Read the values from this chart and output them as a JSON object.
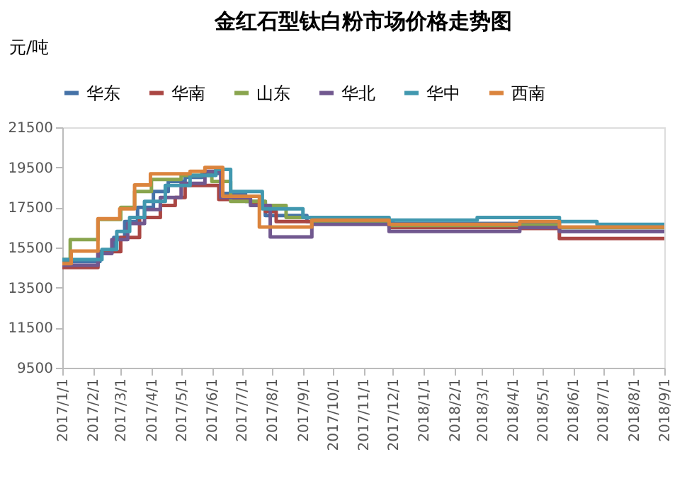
{
  "chart_data": {
    "type": "step",
    "title": "金红石型钛白粉市场价格走势图",
    "ylabel": "元/吨",
    "legend": "top",
    "grid": false,
    "xlim": [
      "2017-01-01",
      "2018-09-01"
    ],
    "ylim": [
      9500,
      21500
    ],
    "yticks": [
      9500,
      11500,
      13500,
      15500,
      17500,
      19500,
      21500
    ],
    "xticks": [
      {
        "value": "2017-01-01",
        "label": "2017/1/1"
      },
      {
        "value": "2017-02-01",
        "label": "2017/2/1"
      },
      {
        "value": "2017-03-01",
        "label": "2017/3/1"
      },
      {
        "value": "2017-04-01",
        "label": "2017/4/1"
      },
      {
        "value": "2017-05-01",
        "label": "2017/5/1"
      },
      {
        "value": "2017-06-01",
        "label": "2017/6/1"
      },
      {
        "value": "2017-07-01",
        "label": "2017/7/1"
      },
      {
        "value": "2017-08-01",
        "label": "2017/8/1"
      },
      {
        "value": "2017-09-01",
        "label": "2017/9/1"
      },
      {
        "value": "2017-10-01",
        "label": "2017/10/1"
      },
      {
        "value": "2017-11-01",
        "label": "2017/11/1"
      },
      {
        "value": "2017-12-01",
        "label": "2017/12/1"
      },
      {
        "value": "2018-01-01",
        "label": "2018/1/1"
      },
      {
        "value": "2018-02-01",
        "label": "2018/2/1"
      },
      {
        "value": "2018-03-01",
        "label": "2018/3/1"
      },
      {
        "value": "2018-04-01",
        "label": "2018/4/1"
      },
      {
        "value": "2018-05-01",
        "label": "2018/5/1"
      },
      {
        "value": "2018-06-01",
        "label": "2018/6/1"
      },
      {
        "value": "2018-07-01",
        "label": "2018/7/1"
      },
      {
        "value": "2018-08-01",
        "label": "2018/8/1"
      },
      {
        "value": "2018-09-01",
        "label": "2018/9/1"
      }
    ],
    "series": [
      {
        "name": "华东",
        "color": "#4572a7",
        "x": [
          "2017-01-01",
          "2017-02-08",
          "2017-02-22",
          "2017-03-05",
          "2017-03-18",
          "2017-04-03",
          "2017-04-18",
          "2017-05-05",
          "2017-05-22",
          "2017-06-12",
          "2017-07-05",
          "2017-07-25",
          "2017-09-05",
          "2017-12-01",
          "2018-05-18",
          "2018-09-01"
        ],
        "values": [
          14800,
          15300,
          16000,
          16800,
          17500,
          18300,
          18800,
          19000,
          19200,
          18200,
          17800,
          17100,
          16800,
          16700,
          16300,
          16300
        ]
      },
      {
        "name": "华南",
        "color": "#aa4643",
        "x": [
          "2017-01-01",
          "2017-02-06",
          "2017-03-01",
          "2017-03-20",
          "2017-04-10",
          "2017-04-25",
          "2017-05-05",
          "2017-06-08",
          "2017-07-10",
          "2017-07-25",
          "2017-08-05",
          "2017-11-27",
          "2018-04-08",
          "2018-05-18",
          "2018-09-01"
        ],
        "values": [
          14500,
          15300,
          16000,
          17000,
          17600,
          18000,
          18600,
          17900,
          17700,
          17300,
          16800,
          16500,
          16450,
          15950,
          15950
        ]
      },
      {
        "name": "山东",
        "color": "#89a54e",
        "x": [
          "2017-01-01",
          "2017-01-09",
          "2017-02-06",
          "2017-03-01",
          "2017-03-15",
          "2017-04-01",
          "2017-05-01",
          "2017-06-01",
          "2017-06-20",
          "2017-07-25",
          "2017-08-15",
          "2017-09-10",
          "2017-11-27",
          "2018-05-18",
          "2018-09-01"
        ],
        "values": [
          14900,
          15900,
          16900,
          17500,
          18300,
          18900,
          19100,
          18800,
          17800,
          17600,
          17000,
          16800,
          16600,
          16500,
          16500
        ]
      },
      {
        "name": "华北",
        "color": "#71588f",
        "x": [
          "2017-01-01",
          "2017-02-06",
          "2017-02-20",
          "2017-03-08",
          "2017-03-25",
          "2017-04-10",
          "2017-05-01",
          "2017-05-25",
          "2017-06-10",
          "2017-07-10",
          "2017-07-30",
          "2017-09-10",
          "2017-11-27",
          "2018-04-08",
          "2018-05-18",
          "2018-09-01"
        ],
        "values": [
          14620,
          15200,
          15900,
          16700,
          17400,
          18000,
          18700,
          19300,
          18000,
          17600,
          16030,
          16660,
          16300,
          16500,
          16300,
          16300
        ]
      },
      {
        "name": "华中",
        "color": "#4198af",
        "x": [
          "2017-01-01",
          "2017-02-10",
          "2017-02-25",
          "2017-03-10",
          "2017-03-25",
          "2017-04-15",
          "2017-05-10",
          "2017-06-05",
          "2017-06-20",
          "2017-07-22",
          "2017-09-01",
          "2017-11-27",
          "2018-02-24",
          "2018-05-18",
          "2018-06-25",
          "2018-09-01"
        ],
        "values": [
          14900,
          15400,
          16300,
          17000,
          17800,
          18600,
          19100,
          19400,
          18300,
          17430,
          17000,
          16870,
          17000,
          16800,
          16660,
          16660
        ]
      },
      {
        "name": "西南",
        "color": "#db843d",
        "x": [
          "2017-01-01",
          "2017-01-10",
          "2017-02-06",
          "2017-02-28",
          "2017-03-15",
          "2017-03-31",
          "2017-05-10",
          "2017-05-25",
          "2017-06-12",
          "2017-07-19",
          "2017-09-10",
          "2017-11-27",
          "2018-04-08",
          "2018-05-18",
          "2018-09-01"
        ],
        "values": [
          14700,
          15320,
          16940,
          17430,
          18620,
          19180,
          19300,
          19500,
          18060,
          16520,
          16870,
          16660,
          16800,
          16520,
          16520
        ]
      }
    ]
  }
}
